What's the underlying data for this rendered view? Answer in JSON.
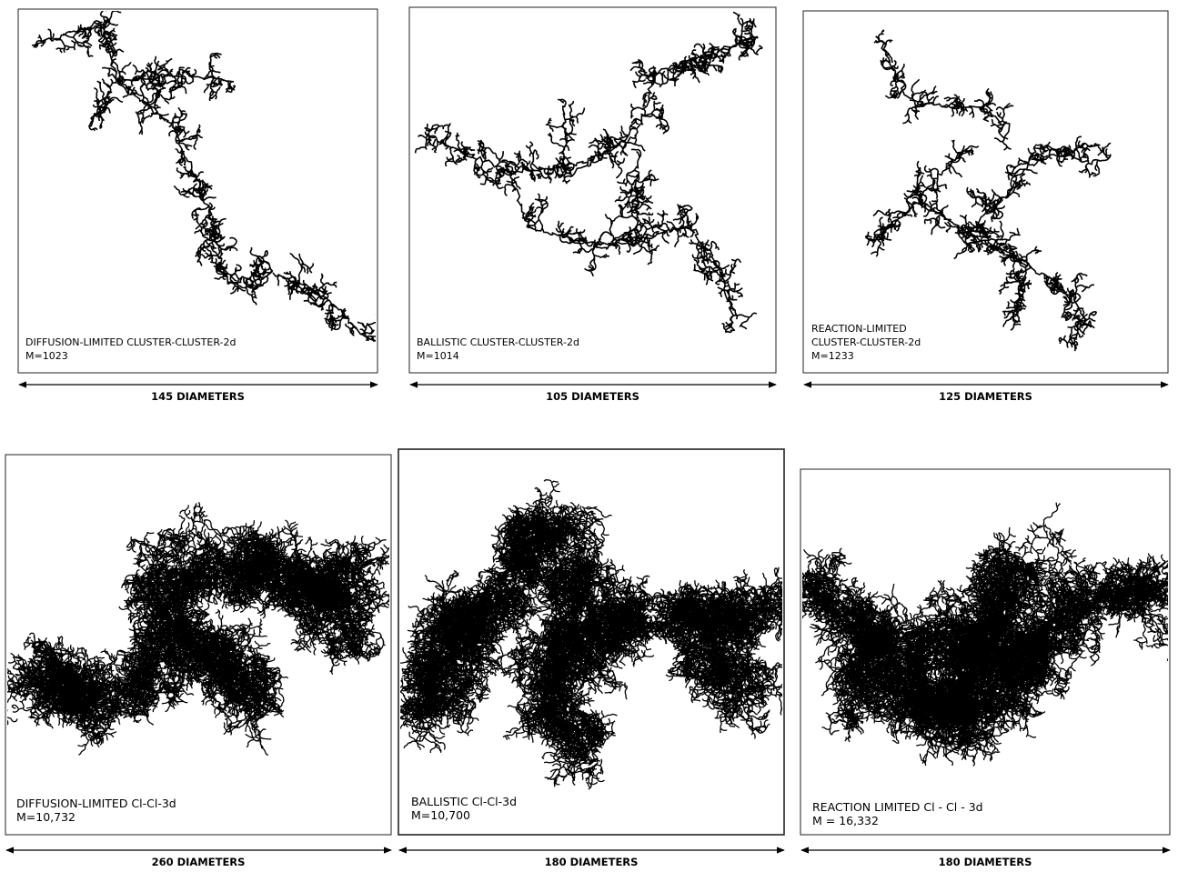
{
  "panels": [
    {
      "label": [
        "DIFFUSION-LIMITED CLUSTER-CLUSTER-2d"
      ],
      "mass": "M=1023",
      "scale": "145 DIAMETERS"
    },
    {
      "label": [
        "BALLISTIC CLUSTER-CLUSTER-2d"
      ],
      "mass": "M=1014",
      "scale": "105 DIAMETERS"
    },
    {
      "label": [
        "REACTION-LIMITED",
        "CLUSTER-CLUSTER-2d"
      ],
      "mass": "M=1233",
      "scale": "125 DIAMETERS"
    },
    {
      "label": [
        "DIFFUSION-LIMITED Cl-Cl-3d"
      ],
      "mass": "M=10,732",
      "scale": "260 DIAMETERS"
    },
    {
      "label": [
        "BALLISTIC Cl-Cl-3d"
      ],
      "mass": "M=10,700",
      "scale": "180 DIAMETERS"
    },
    {
      "label": [
        "REACTION LIMITED Cl - Cl  - 3d"
      ],
      "mass": "M = 16,332",
      "scale": "180 DIAMETERS"
    }
  ]
}
